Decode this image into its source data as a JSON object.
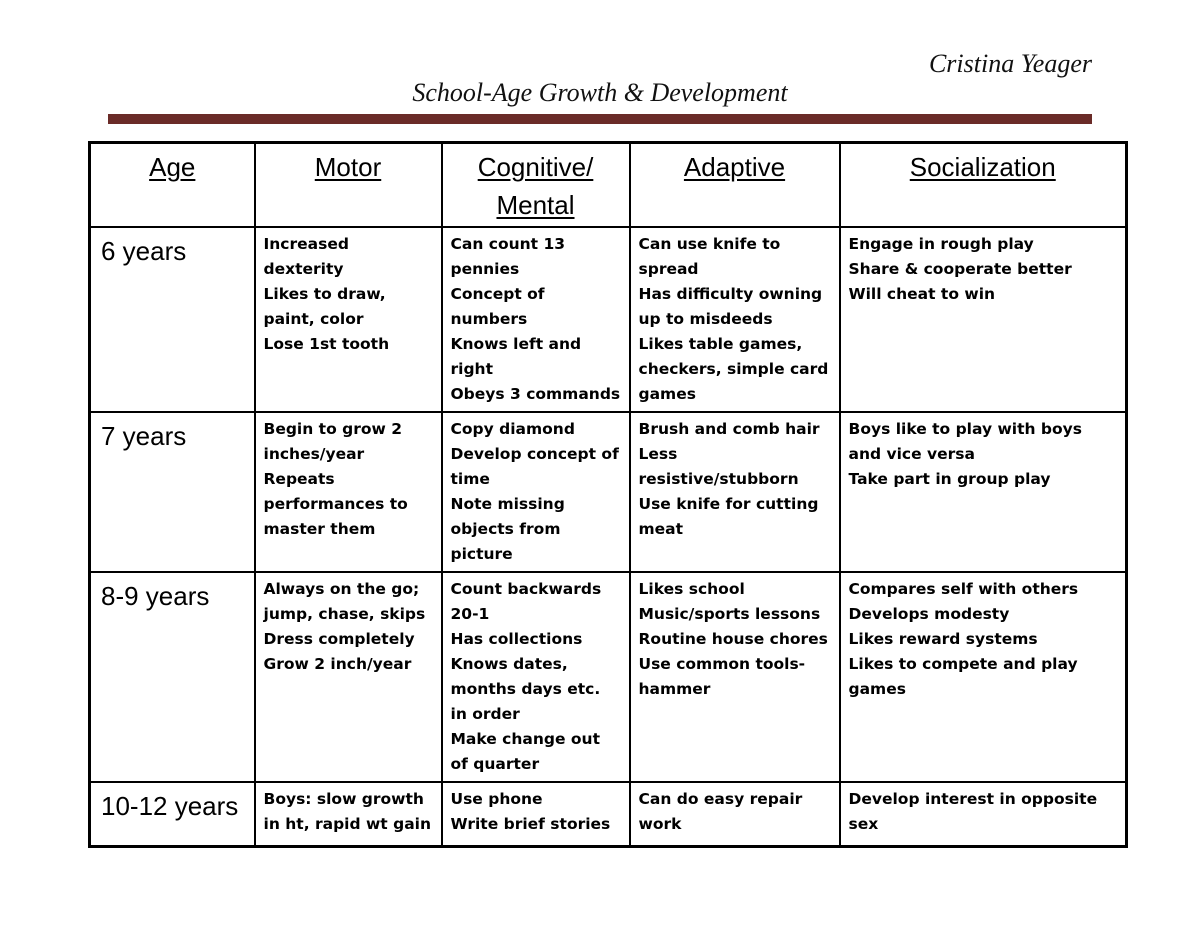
{
  "document": {
    "author": "Cristina Yeager",
    "title": "School-Age Growth & Development",
    "rule_color": "#6a2b28"
  },
  "table": {
    "headers": [
      "Age",
      "Motor",
      "Cognitive/ Mental",
      "Adaptive",
      "Socialization"
    ],
    "column_keys": [
      "motor",
      "cognitive_mental",
      "adaptive",
      "socialization"
    ],
    "rows": [
      {
        "age": "6 years",
        "motor": [
          "Increased dexterity",
          "Likes to draw, paint, color",
          "Lose 1st tooth"
        ],
        "cognitive_mental": [
          "Can count 13 pennies",
          "Concept of numbers",
          "Knows left and right",
          "Obeys 3 commands"
        ],
        "adaptive": [
          "Can use knife to spread",
          "Has difficulty owning up to misdeeds",
          "Likes table games, checkers, simple card games"
        ],
        "socialization": [
          "Engage in rough play",
          "Share & cooperate better",
          "Will cheat to win"
        ]
      },
      {
        "age": "7 years",
        "motor": [
          "Begin to grow 2 inches/year",
          "Repeats performances to master them"
        ],
        "cognitive_mental": [
          "Copy diamond",
          "Develop concept of time",
          "Note missing objects from picture"
        ],
        "adaptive": [
          "Brush and comb hair",
          "Less resistive/stubborn",
          "Use knife for cutting meat"
        ],
        "socialization": [
          "Boys like to play with boys and vice versa",
          "Take part in group play"
        ]
      },
      {
        "age": "8-9 years",
        "motor": [
          "Always on the go; jump, chase, skips",
          "Dress completely",
          "Grow 2 inch/year"
        ],
        "cognitive_mental": [
          "Count backwards 20-1",
          "Has collections",
          "Knows dates, months days etc. in order",
          "Make change out of quarter"
        ],
        "adaptive": [
          "Likes school",
          "Music/sports lessons",
          "Routine house chores",
          "Use common tools- hammer"
        ],
        "socialization": [
          "Compares self with others",
          "Develops modesty",
          "Likes reward systems",
          "Likes to compete and play games"
        ]
      },
      {
        "age": "10-12 years",
        "motor": [
          "Boys: slow growth in ht, rapid wt gain"
        ],
        "cognitive_mental": [
          "Use phone",
          "Write brief stories"
        ],
        "adaptive": [
          "Can do easy repair work"
        ],
        "socialization": [
          "Develop interest in opposite sex"
        ]
      }
    ]
  }
}
